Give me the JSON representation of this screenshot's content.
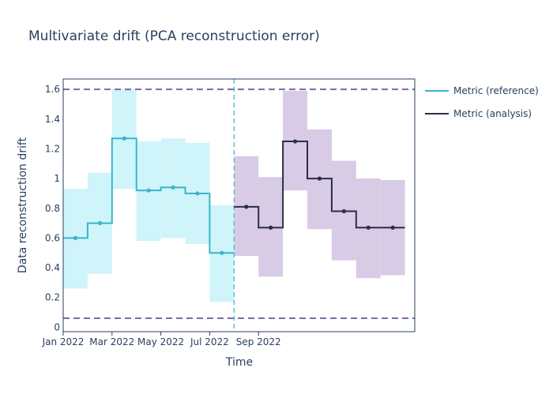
{
  "chart_data": {
    "type": "line",
    "title": "Multivariate drift (PCA reconstruction error)",
    "xlabel": "Time",
    "ylabel": "Data reconstruction drift",
    "x_ticks": [
      "Jan 2022",
      "Mar 2022",
      "May 2022",
      "Jul 2022",
      "Sep 2022"
    ],
    "y_ticks": [
      "0",
      "0.2",
      "0.4",
      "0.6",
      "0.8",
      "1",
      "1.2",
      "1.4",
      "1.6"
    ],
    "ylim": [
      -0.03,
      1.67
    ],
    "xlim": [
      0,
      14.4
    ],
    "x_tick_positions": [
      0,
      2,
      4,
      6,
      8
    ],
    "thresholds": {
      "upper": 1.6,
      "lower": 0.06,
      "color": "#8266ad"
    },
    "period_divider": 7,
    "legend_position": "top-right",
    "series": [
      {
        "name": "Metric (reference)",
        "color": "#3bb5c8",
        "band_color": "#cff4fa",
        "points": [
          {
            "x": 0.5,
            "y": 0.6,
            "lower": 0.26,
            "upper": 0.93
          },
          {
            "x": 1.5,
            "y": 0.7,
            "lower": 0.36,
            "upper": 1.04
          },
          {
            "x": 2.5,
            "y": 1.27,
            "lower": 0.93,
            "upper": 1.6
          },
          {
            "x": 3.5,
            "y": 0.92,
            "lower": 0.58,
            "upper": 1.25
          },
          {
            "x": 4.5,
            "y": 0.94,
            "lower": 0.6,
            "upper": 1.27
          },
          {
            "x": 5.5,
            "y": 0.9,
            "lower": 0.56,
            "upper": 1.24
          },
          {
            "x": 6.5,
            "y": 0.5,
            "lower": 0.17,
            "upper": 0.82
          }
        ]
      },
      {
        "name": "Metric (analysis)",
        "color": "#2c2e47",
        "band_color": "#d7cbe5",
        "points": [
          {
            "x": 7.5,
            "y": 0.81,
            "lower": 0.48,
            "upper": 1.15
          },
          {
            "x": 8.5,
            "y": 0.67,
            "lower": 0.34,
            "upper": 1.01
          },
          {
            "x": 9.5,
            "y": 1.25,
            "lower": 0.92,
            "upper": 1.59
          },
          {
            "x": 10.5,
            "y": 1.0,
            "lower": 0.66,
            "upper": 1.33
          },
          {
            "x": 11.5,
            "y": 0.78,
            "lower": 0.45,
            "upper": 1.12
          },
          {
            "x": 12.5,
            "y": 0.67,
            "lower": 0.33,
            "upper": 1.0
          },
          {
            "x": 13.5,
            "y": 0.67,
            "lower": 0.35,
            "upper": 0.99
          }
        ]
      }
    ]
  }
}
